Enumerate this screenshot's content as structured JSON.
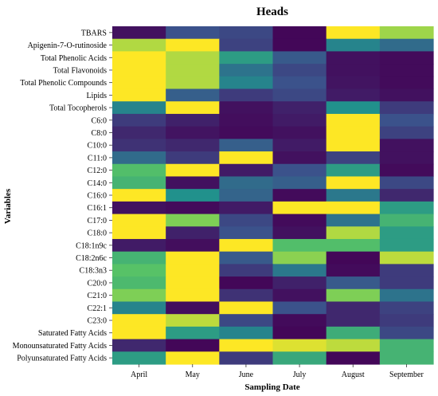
{
  "chart_data": {
    "type": "heatmap",
    "title": "Heads",
    "xlabel": "Sampling Date",
    "ylabel": "Variables",
    "x": [
      "April",
      "May",
      "June",
      "July",
      "August",
      "September"
    ],
    "y": [
      "TBARS",
      "Apigenin-7-O-rutinoside",
      "Total Phenolic Acids",
      "Total Flavonoids",
      "Total Phenolic Compounds",
      "Lipids",
      "Total Tocopherols",
      "C6:0",
      "C8:0",
      "C10:0",
      "C11:0",
      "C12:0",
      "C14:0",
      "C16:0",
      "C16:1",
      "C17:0",
      "C18:0",
      "C18:1n9c",
      "C18:2n6c",
      "C18:3n3",
      "C20:0",
      "C21:0",
      "C22:1",
      "C23:0",
      "Saturated Fatty Acids",
      "Monounsaturated Fatty Acids",
      "Polyunsaturated Fatty Acids"
    ],
    "colorscale": "viridis",
    "values": [
      [
        0.05,
        0.25,
        0.22,
        0.02,
        1.0,
        0.85
      ],
      [
        0.88,
        1.0,
        0.2,
        0.02,
        0.45,
        0.35
      ],
      [
        1.0,
        0.88,
        0.55,
        0.28,
        0.05,
        0.03
      ],
      [
        1.0,
        0.88,
        0.38,
        0.22,
        0.05,
        0.03
      ],
      [
        1.0,
        0.88,
        0.45,
        0.25,
        0.06,
        0.03
      ],
      [
        1.0,
        0.3,
        0.18,
        0.22,
        0.08,
        0.05
      ],
      [
        0.45,
        1.0,
        0.05,
        0.1,
        0.5,
        0.18
      ],
      [
        0.18,
        0.1,
        0.04,
        0.08,
        1.0,
        0.25
      ],
      [
        0.12,
        0.06,
        0.03,
        0.05,
        1.0,
        0.2
      ],
      [
        0.15,
        0.12,
        0.3,
        0.08,
        1.0,
        0.05
      ],
      [
        0.35,
        0.18,
        1.0,
        0.05,
        0.2,
        0.05
      ],
      [
        0.7,
        1.0,
        0.08,
        0.25,
        0.55,
        0.03
      ],
      [
        0.65,
        0.05,
        0.35,
        0.3,
        1.0,
        0.22
      ],
      [
        1.0,
        0.5,
        0.32,
        0.03,
        0.4,
        0.12
      ],
      [
        0.05,
        0.03,
        0.08,
        1.0,
        1.0,
        0.55
      ],
      [
        1.0,
        0.8,
        0.22,
        0.03,
        0.38,
        0.65
      ],
      [
        1.0,
        0.1,
        0.25,
        0.05,
        0.88,
        0.55
      ],
      [
        0.08,
        0.04,
        1.0,
        0.7,
        0.7,
        0.55
      ],
      [
        0.65,
        1.0,
        0.28,
        0.82,
        0.02,
        0.9
      ],
      [
        0.72,
        1.0,
        0.18,
        0.4,
        0.03,
        0.18
      ],
      [
        0.68,
        1.0,
        0.02,
        0.1,
        0.28,
        0.18
      ],
      [
        0.8,
        1.0,
        0.15,
        0.05,
        0.8,
        0.38
      ],
      [
        0.45,
        0.04,
        1.0,
        0.25,
        0.12,
        0.2
      ],
      [
        1.0,
        0.9,
        0.22,
        0.03,
        0.12,
        0.18
      ],
      [
        1.0,
        0.55,
        0.45,
        0.02,
        0.62,
        0.22
      ],
      [
        0.12,
        0.02,
        1.0,
        0.95,
        0.9,
        0.65
      ],
      [
        0.55,
        1.0,
        0.18,
        0.6,
        0.02,
        0.65
      ]
    ]
  }
}
